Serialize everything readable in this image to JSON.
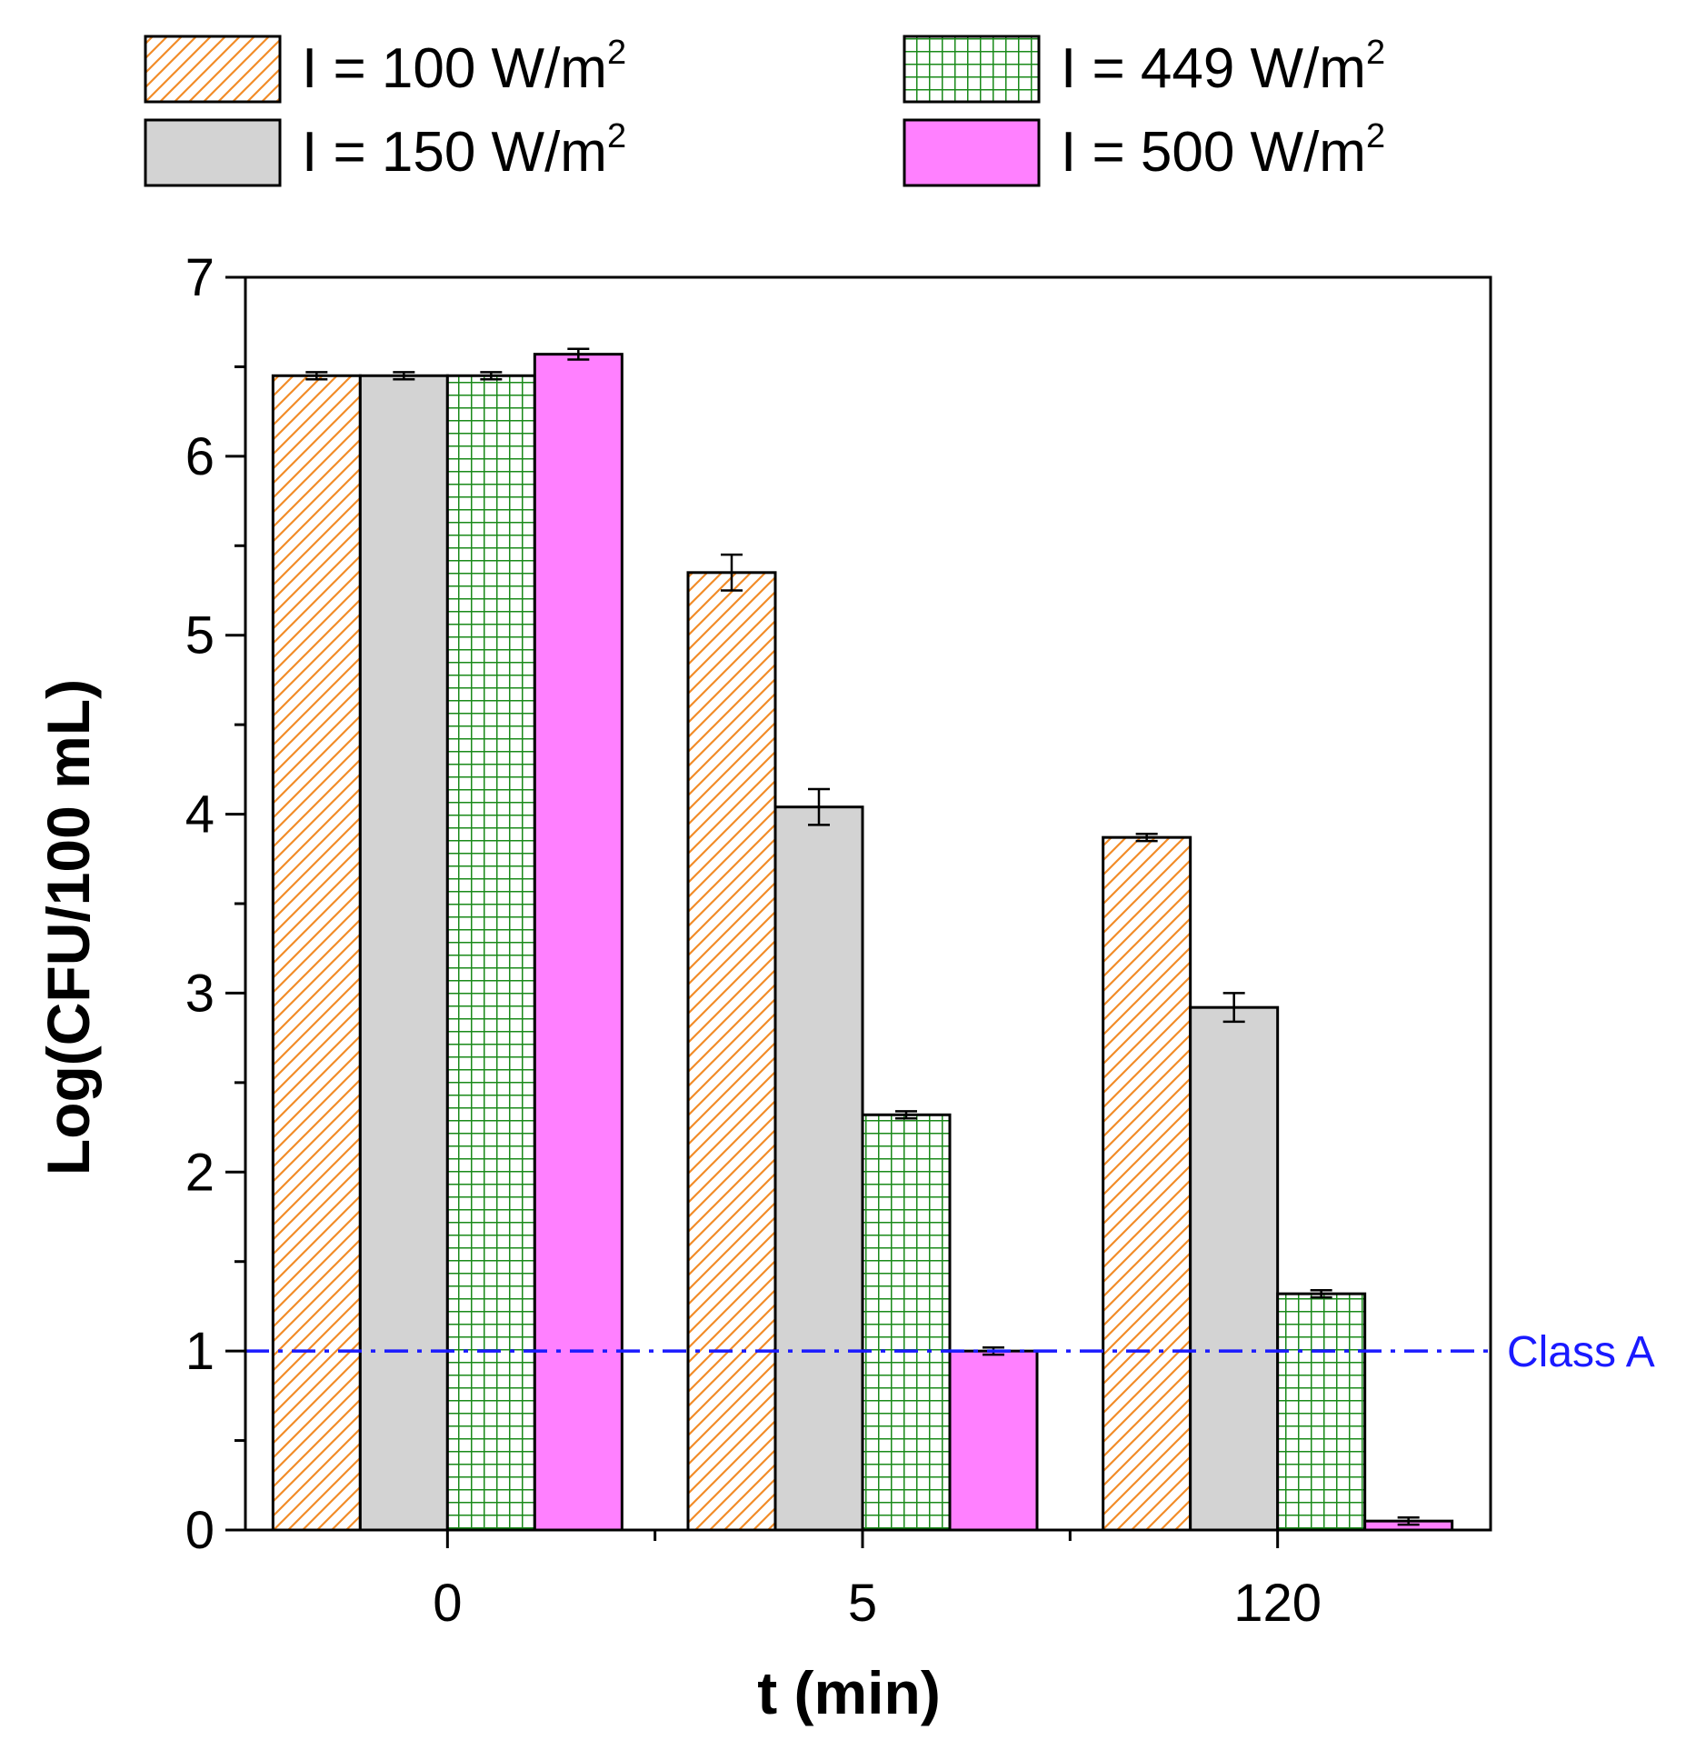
{
  "chart_data": {
    "type": "bar",
    "title": "",
    "xlabel": "t (min)",
    "ylabel": "Log(CFU/100 mL)",
    "ylim": [
      0,
      7
    ],
    "yticks": [
      "0",
      "1",
      "2",
      "3",
      "4",
      "5",
      "6",
      "7"
    ],
    "categories": [
      "0",
      "5",
      "120"
    ],
    "legend_unit": "W/m",
    "legend_unit_sup": "2",
    "series": [
      {
        "name": "I = 100 W/m2",
        "label": "I = 100 ",
        "values": [
          6.45,
          5.35,
          3.87
        ],
        "errors": [
          0.02,
          0.1,
          0.02
        ],
        "fill": "hatch",
        "color": "#f28c28"
      },
      {
        "name": "I = 150 W/m2",
        "label": "I = 150 ",
        "values": [
          6.45,
          4.04,
          2.92
        ],
        "errors": [
          0.02,
          0.1,
          0.08
        ],
        "fill": "solid",
        "color": "#d3d3d3"
      },
      {
        "name": "I = 449 W/m2",
        "label": "I = 449 ",
        "values": [
          6.45,
          2.32,
          1.32
        ],
        "errors": [
          0.02,
          0.02,
          0.02
        ],
        "fill": "grid",
        "color": "#1a8a1a"
      },
      {
        "name": "I = 500 W/m2",
        "label": "I = 500 ",
        "values": [
          6.57,
          1.0,
          0.05
        ],
        "errors": [
          0.03,
          0.02,
          0.02
        ],
        "fill": "solid",
        "color": "#ff80ff"
      }
    ],
    "annotations": [
      {
        "text": "Class A",
        "y": 1,
        "style": "dash-dot",
        "color": "#1a1aff"
      }
    ],
    "legend_position": "top"
  }
}
